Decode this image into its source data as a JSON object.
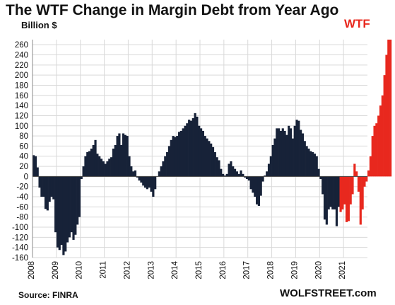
{
  "chart_data": {
    "type": "bar",
    "title": "The WTF Change in Margin Debt from Year Ago",
    "ylabel": "Billion $",
    "annotation": "WTF",
    "source": "Source: FINRA",
    "brand": "WOLFSTREET.com",
    "ylim": [
      -160,
      270
    ],
    "yticks": [
      260,
      240,
      220,
      200,
      180,
      160,
      140,
      120,
      100,
      80,
      60,
      40,
      20,
      0,
      -20,
      -40,
      -60,
      -80,
      -100,
      -120,
      -140,
      -160
    ],
    "ytick_labels": [
      "260",
      "240",
      "220",
      "200",
      "180",
      "160",
      "140",
      "120",
      "100",
      "80",
      "60",
      "40",
      "20",
      "0",
      "-20",
      "-40",
      "-60",
      "-80",
      "-100",
      "-120",
      "-140",
      "-160"
    ],
    "x_labels": [
      "2008",
      "2009",
      "2010",
      "2011",
      "2012",
      "2013",
      "2014",
      "2015",
      "2016",
      "2017",
      "2018",
      "2019",
      "2020",
      "2021"
    ],
    "start": "2008-01",
    "grid": true,
    "colors": {
      "normal": "#172238",
      "highlight": "#e8281e",
      "grid": "#d9d9d9"
    },
    "highlight_from": "2020-11",
    "values": [
      42,
      40,
      18,
      -22,
      -40,
      -40,
      -64,
      -67,
      -50,
      -40,
      -45,
      -110,
      -140,
      -145,
      -135,
      -155,
      -148,
      -130,
      -120,
      -110,
      -125,
      -115,
      -95,
      -80,
      -5,
      20,
      40,
      48,
      50,
      55,
      62,
      72,
      45,
      40,
      35,
      30,
      25,
      30,
      35,
      38,
      55,
      62,
      80,
      85,
      62,
      85,
      82,
      80,
      40,
      20,
      10,
      12,
      -2,
      -8,
      -12,
      -18,
      -22,
      -25,
      -22,
      -30,
      -40,
      -25,
      0,
      10,
      20,
      30,
      40,
      48,
      60,
      72,
      80,
      78,
      80,
      88,
      90,
      95,
      100,
      105,
      112,
      110,
      115,
      125,
      118,
      100,
      95,
      90,
      80,
      75,
      70,
      65,
      58,
      48,
      38,
      32,
      15,
      5,
      2,
      5,
      25,
      30,
      20,
      15,
      10,
      5,
      12,
      5,
      -2,
      -5,
      -8,
      -25,
      -32,
      -40,
      -55,
      -58,
      -38,
      -10,
      2,
      10,
      25,
      40,
      62,
      75,
      95,
      95,
      90,
      95,
      90,
      82,
      100,
      95,
      75,
      100,
      112,
      110,
      92,
      85,
      70,
      60,
      55,
      50,
      48,
      45,
      40,
      15,
      -5,
      -35,
      -85,
      -95,
      -65,
      -60,
      -65,
      -65,
      -98,
      -60,
      -70,
      -65,
      -55,
      -90,
      -88,
      -55,
      -35,
      25,
      10,
      -30,
      -95,
      -65,
      -20,
      -10,
      12,
      40,
      80,
      100,
      105,
      120,
      140,
      160,
      200,
      240,
      270,
      270
    ]
  }
}
